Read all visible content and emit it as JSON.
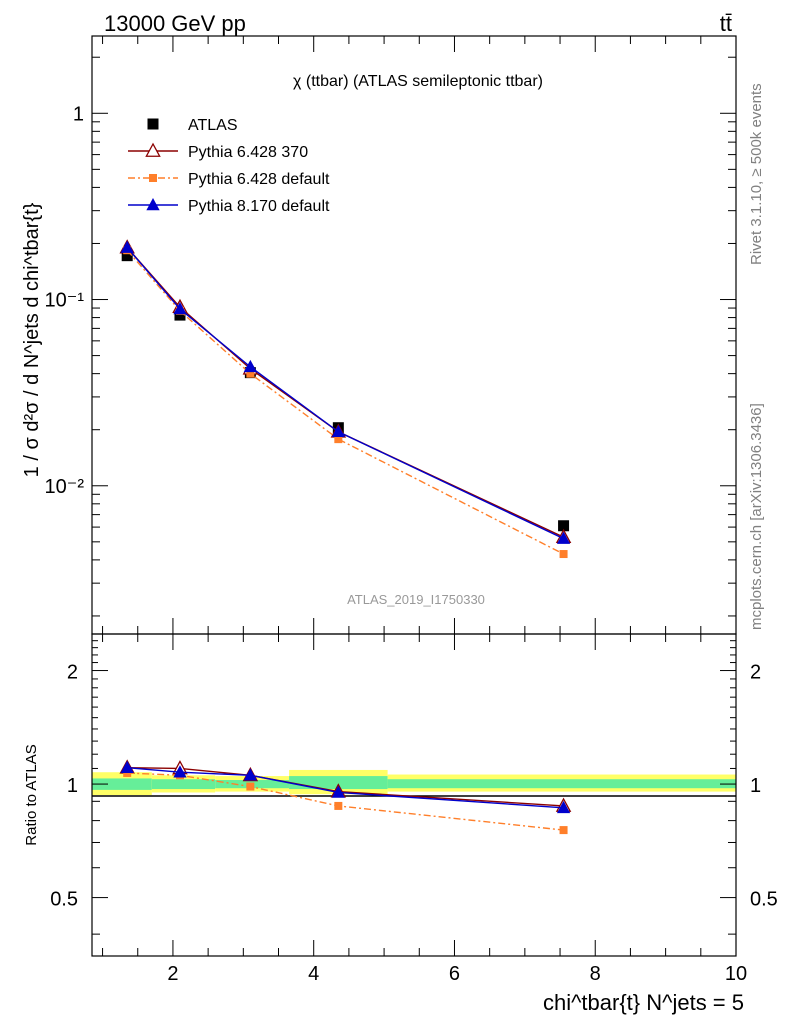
{
  "header": {
    "left": "13000 GeV pp",
    "right": "tt̄"
  },
  "side_labels": {
    "rivet": "Rivet 3.1.10, ≥ 500k events",
    "mcplots": "mcplots.cern.ch [arXiv:1306.3436]"
  },
  "watermark": "ATLAS_2019_I1750330",
  "colors": {
    "atlas": "#000000",
    "py6_370": "#8b0000",
    "py6_default": "#ff7f2a",
    "py8_default": "#0000cc",
    "band_inner": "#66ee99",
    "band_outer": "#ffff66"
  },
  "chart_data": [
    {
      "type": "line",
      "title": "χ (ttbar) (ATLAS semileptonic ttbar)",
      "ylabel": "1 / σ d²σ / d N^jets d chi^tbar{t}",
      "yscale": "log",
      "xlim": [
        0.85,
        10.0
      ],
      "ylim": [
        0.0016,
        2.6
      ],
      "ytick_labels": [
        "1",
        "10⁻¹",
        "10⁻²"
      ],
      "x": [
        1.35,
        2.1,
        3.1,
        4.35,
        7.55
      ],
      "series": [
        {
          "name": "ATLAS",
          "marker": "square",
          "values": [
            0.172,
            0.0825,
            0.0405,
            0.0205,
            0.0061
          ]
        },
        {
          "name": "Pythia 6.428 370",
          "marker": "triangle-open",
          "values": [
            0.19,
            0.091,
            0.0425,
            0.0195,
            0.0053
          ]
        },
        {
          "name": "Pythia 6.428 default",
          "marker": "square-small",
          "style": "dashdot",
          "values": [
            0.184,
            0.087,
            0.04,
            0.0178,
            0.0043
          ]
        },
        {
          "name": "Pythia 8.170 default",
          "marker": "triangle",
          "values": [
            0.19,
            0.089,
            0.0435,
            0.0195,
            0.0052
          ]
        }
      ],
      "legend_position": "top-left"
    },
    {
      "type": "line",
      "ylabel": "Ratio to ATLAS",
      "xlabel": "chi^tbar{t} N^jets = 5",
      "xlim": [
        0.85,
        10.0
      ],
      "ylim": [
        0.35,
        2.5
      ],
      "xtick_labels": [
        "2",
        "4",
        "6",
        "8",
        "10"
      ],
      "ytick_labels": [
        "2",
        "1",
        "0.5"
      ],
      "reference_line": 1.0,
      "bins": [
        {
          "x0": 0.85,
          "x1": 1.7,
          "inner": [
            0.965,
            1.035
          ],
          "outer": [
            0.935,
            1.075
          ]
        },
        {
          "x0": 1.7,
          "x1": 2.6,
          "inner": [
            0.97,
            1.03
          ],
          "outer": [
            0.95,
            1.055
          ]
        },
        {
          "x0": 2.6,
          "x1": 3.65,
          "inner": [
            0.975,
            1.025
          ],
          "outer": [
            0.955,
            1.05
          ]
        },
        {
          "x0": 3.65,
          "x1": 5.05,
          "inner": [
            0.97,
            1.05
          ],
          "outer": [
            0.94,
            1.09
          ]
        },
        {
          "x0": 5.05,
          "x1": 10.0,
          "inner": [
            0.975,
            1.03
          ],
          "outer": [
            0.955,
            1.06
          ]
        }
      ],
      "x": [
        1.35,
        2.1,
        3.1,
        4.35,
        7.55
      ],
      "series": [
        {
          "name": "Pythia 6.428 370",
          "values": [
            1.105,
            1.1,
            1.055,
            0.955,
            0.875
          ]
        },
        {
          "name": "Pythia 6.428 default",
          "values": [
            1.07,
            1.055,
            0.985,
            0.875,
            0.755
          ]
        },
        {
          "name": "Pythia 8.170 default",
          "values": [
            1.105,
            1.075,
            1.055,
            0.95,
            0.865
          ]
        }
      ]
    }
  ]
}
